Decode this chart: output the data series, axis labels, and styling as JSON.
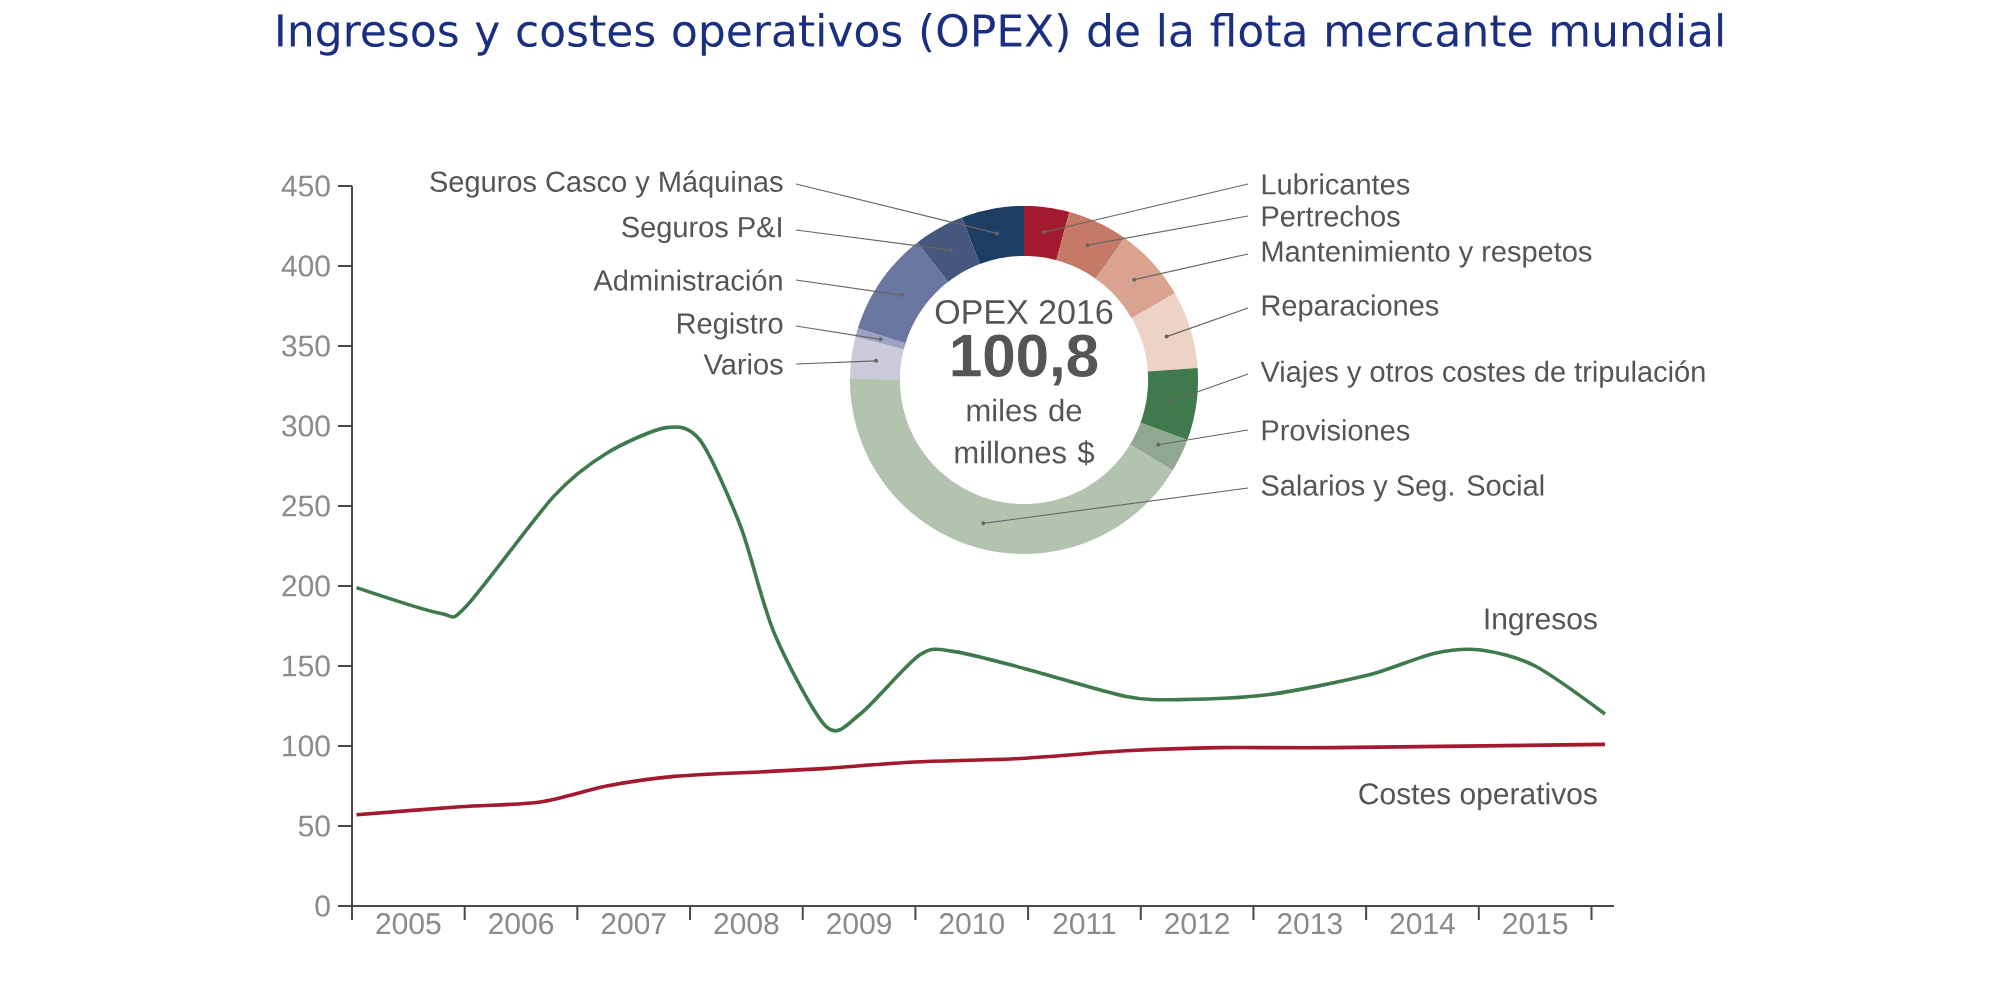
{
  "chart_data": [
    {
      "type": "line",
      "title": "Ingresos y costes operativos (OPEX) de la flota mercante mundial",
      "xlim": [
        2004.5,
        2015.7
      ],
      "ylim": [
        0,
        450
      ],
      "xticks": [
        {
          "value": 2004.5,
          "label": null
        },
        2005,
        {
          "value": 2005.5,
          "label": null
        },
        2006,
        {
          "value": 2006.5,
          "label": null
        },
        2007,
        {
          "value": 2007.5,
          "label": null
        },
        2008,
        {
          "value": 2008.5,
          "label": null
        },
        2009,
        {
          "value": 2009.5,
          "label": null
        },
        2010,
        {
          "value": 2010.5,
          "label": null
        },
        2011,
        {
          "value": 2011.5,
          "label": null
        },
        2012,
        {
          "value": 2012.5,
          "label": null
        },
        2013,
        {
          "value": 2013.5,
          "label": null
        },
        2014,
        {
          "value": 2014.5,
          "label": null
        },
        2015,
        {
          "value": 2015.5,
          "label": null
        }
      ],
      "yticks": [
        0,
        50,
        100,
        150,
        200,
        250,
        300,
        350,
        400,
        450
      ],
      "series": [
        {
          "name": "Ingresos",
          "color": "#3f7a4c",
          "x": [
            2004.54,
            2005.28,
            2005.51,
            2006.29,
            2006.76,
            2007.29,
            2007.59,
            2007.95,
            2008.25,
            2008.71,
            2009.01,
            2009.54,
            2009.85,
            2010.49,
            2011.37,
            2011.85,
            2012.62,
            2013.5,
            2014.11,
            2014.52,
            2015.0,
            2015.62
          ],
          "values": [
            199,
            183,
            187,
            256,
            283,
            299,
            291,
            237,
            170,
            112,
            120,
            157,
            159,
            148,
            131,
            129,
            132,
            144,
            158,
            160,
            150,
            120
          ]
        },
        {
          "name": "Costes operativos",
          "color": "#a3192e",
          "x": [
            2004.54,
            2005.46,
            2006.17,
            2006.76,
            2007.36,
            2008.18,
            2008.71,
            2009.49,
            2010.38,
            2011.37,
            2012.2,
            2013.22,
            2015.62
          ],
          "values": [
            57,
            62,
            65,
            75,
            81,
            84,
            86,
            90,
            92,
            97,
            99,
            99,
            101
          ]
        }
      ]
    },
    {
      "type": "donut",
      "title": "OPEX 2016",
      "categories": [
        "Lubricantes",
        "Pertrechos",
        "Mantenimiento y respetos",
        "Reparaciones",
        "Viajes y otros costes de tripulación",
        "Provisiones",
        "Salarios y Seg. Social",
        "Varios",
        "Registro",
        "Administración",
        "Seguros P&I",
        "Seguros Casco y Máquinas"
      ],
      "values": [
        4.2,
        5.6,
        6.9,
        7.2,
        6.7,
        3.1,
        41.4,
        3.9,
        0.8,
        9.7,
        4.7,
        5.8
      ],
      "colors": [
        "#a3192e",
        "#c47a66",
        "#d9a38f",
        "#ecd3c6",
        "#3f7a4c",
        "#8fa88f",
        "#b3c4ae",
        "#cbcbdc",
        "#9da3c3",
        "#6a77a0",
        "#46577e",
        "#1e3d63"
      ],
      "annotations": [
        "100,8",
        "miles de millones $"
      ]
    }
  ]
}
